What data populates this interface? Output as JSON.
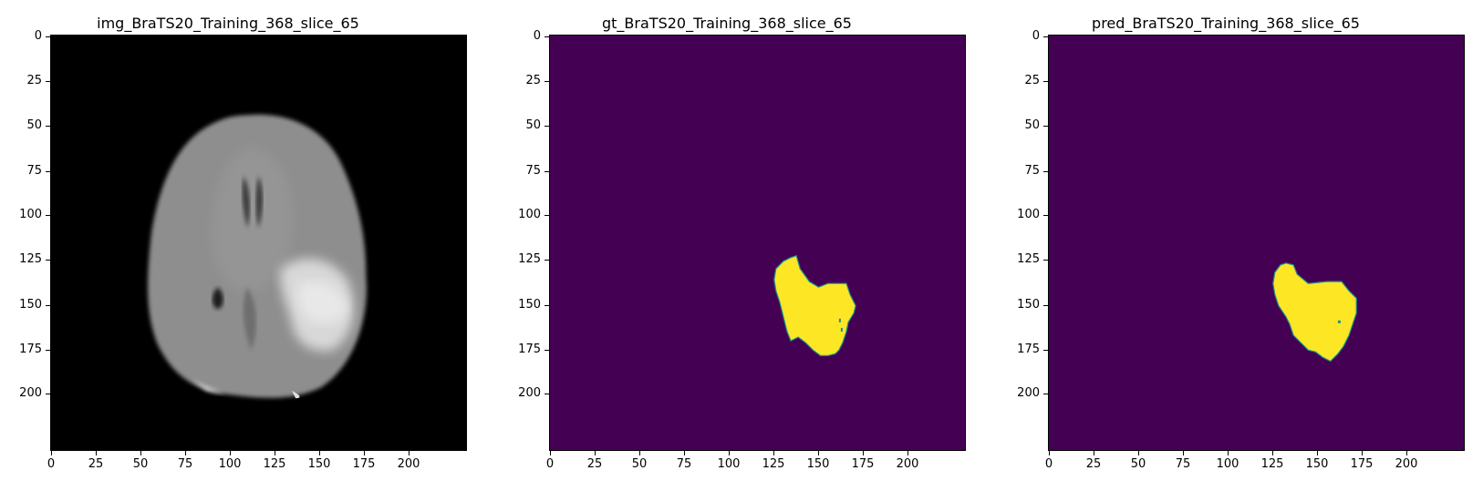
{
  "figure": {
    "panels": [
      {
        "title": "img_BraTS20_Training_368_slice_65",
        "kind": "mri-slice",
        "colors": {
          "background": "#000000",
          "brain": "#8c8c8c",
          "lesion": "#d6d6d6"
        }
      },
      {
        "title": "gt_BraTS20_Training_368_slice_65",
        "kind": "segmentation-mask",
        "colors": {
          "background": "#440154",
          "mask": "#fde725",
          "edge": "#21918c"
        }
      },
      {
        "title": "pred_BraTS20_Training_368_slice_65",
        "kind": "segmentation-mask",
        "colors": {
          "background": "#440154",
          "mask": "#fde725",
          "edge": "#21918c"
        }
      }
    ],
    "axes": {
      "x_ticks": [
        "0",
        "25",
        "50",
        "75",
        "100",
        "125",
        "150",
        "175",
        "200"
      ],
      "y_ticks": [
        "0",
        "25",
        "50",
        "75",
        "100",
        "125",
        "150",
        "175",
        "200"
      ],
      "xlim": [
        0,
        224
      ],
      "ylim": [
        224,
        0
      ]
    }
  }
}
